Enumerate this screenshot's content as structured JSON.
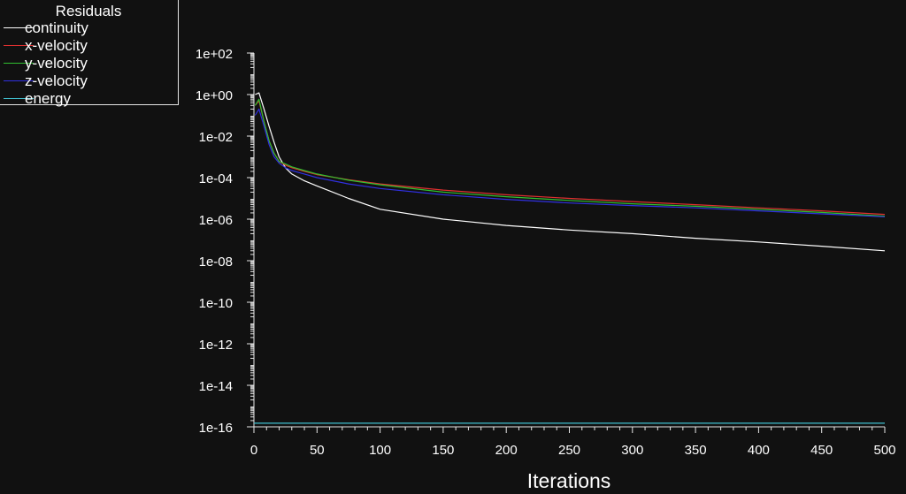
{
  "chart_data": {
    "type": "line",
    "title": "",
    "xlabel": "Iterations",
    "ylabel": "",
    "yscale": "log",
    "xlim": [
      0,
      500
    ],
    "ylim_exp": [
      -16,
      2
    ],
    "grid": false,
    "legend_title": "Residuals",
    "legend_position": "top-left",
    "x_ticks": [
      {
        "value": 0,
        "label": "0"
      },
      {
        "value": 50,
        "label": "50"
      },
      {
        "value": 100,
        "label": "100"
      },
      {
        "value": 150,
        "label": "150"
      },
      {
        "value": 200,
        "label": "200"
      },
      {
        "value": 250,
        "label": "250"
      },
      {
        "value": 300,
        "label": "300"
      },
      {
        "value": 350,
        "label": "350"
      },
      {
        "value": 400,
        "label": "400"
      },
      {
        "value": 450,
        "label": "450"
      },
      {
        "value": 500,
        "label": "500"
      }
    ],
    "y_ticks": [
      {
        "exp": 2,
        "label": "1e+02"
      },
      {
        "exp": 0,
        "label": "1e+00"
      },
      {
        "exp": -2,
        "label": "1e-02"
      },
      {
        "exp": -4,
        "label": "1e-04"
      },
      {
        "exp": -6,
        "label": "1e-06"
      },
      {
        "exp": -8,
        "label": "1e-08"
      },
      {
        "exp": -10,
        "label": "1e-10"
      },
      {
        "exp": -12,
        "label": "1e-12"
      },
      {
        "exp": -14,
        "label": "1e-14"
      },
      {
        "exp": -16,
        "label": "1e-16"
      }
    ],
    "series": [
      {
        "name": "continuity",
        "color": "#ffffff",
        "x": [
          1,
          4,
          8,
          12,
          16,
          20,
          25,
          30,
          40,
          50,
          75,
          100,
          150,
          200,
          250,
          300,
          350,
          400,
          450,
          500
        ],
        "y": [
          1,
          1.2,
          0.2,
          0.03,
          0.005,
          0.001,
          0.0003,
          0.00015,
          7e-05,
          4e-05,
          1e-05,
          3e-06,
          1e-06,
          5e-07,
          3e-07,
          2e-07,
          1.2e-07,
          8e-08,
          5e-08,
          3e-08
        ]
      },
      {
        "name": "x-velocity",
        "color": "#e03030",
        "x": [
          1,
          4,
          8,
          12,
          16,
          20,
          25,
          30,
          40,
          50,
          75,
          100,
          150,
          200,
          250,
          300,
          350,
          400,
          450,
          500
        ],
        "y": [
          0.3,
          0.5,
          0.05,
          0.006,
          0.0015,
          0.0006,
          0.0004,
          0.0003,
          0.0002,
          0.00014,
          8e-05,
          5e-05,
          2.5e-05,
          1.5e-05,
          1e-05,
          7e-06,
          5e-06,
          3.5e-06,
          2.5e-06,
          1.7e-06
        ]
      },
      {
        "name": "y-velocity",
        "color": "#30c030",
        "x": [
          1,
          4,
          8,
          12,
          16,
          20,
          25,
          30,
          40,
          50,
          75,
          100,
          150,
          200,
          250,
          300,
          350,
          400,
          450,
          500
        ],
        "y": [
          0.3,
          0.6,
          0.05,
          0.006,
          0.0015,
          0.0006,
          0.00045,
          0.00033,
          0.00022,
          0.00015,
          7.5e-05,
          4.5e-05,
          2e-05,
          1.2e-05,
          8e-06,
          5.5e-06,
          4.2e-06,
          3e-06,
          2.1e-06,
          1.4e-06
        ]
      },
      {
        "name": "z-velocity",
        "color": "#3030e0",
        "x": [
          1,
          4,
          8,
          12,
          16,
          20,
          25,
          30,
          40,
          50,
          75,
          100,
          150,
          200,
          250,
          300,
          350,
          400,
          450,
          500
        ],
        "y": [
          0.1,
          0.2,
          0.03,
          0.004,
          0.001,
          0.0005,
          0.0003,
          0.00022,
          0.00015,
          0.0001,
          5e-05,
          3e-05,
          1.5e-05,
          9e-06,
          6e-06,
          4.5e-06,
          3.5e-06,
          2.5e-06,
          1.8e-06,
          1.3e-06
        ]
      },
      {
        "name": "energy",
        "color": "#40c0d0",
        "x": [
          0,
          500
        ],
        "y": [
          1.5e-16,
          1.5e-16
        ]
      }
    ]
  }
}
